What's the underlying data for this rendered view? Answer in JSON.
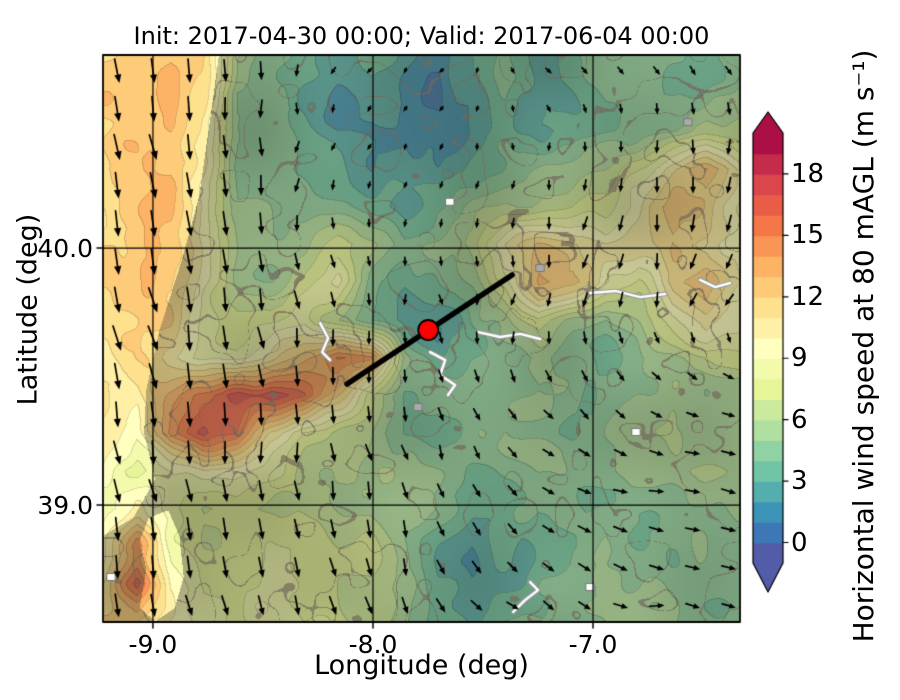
{
  "title": "Init: 2017-04-30 00:00; Valid: 2017-06-04 00:00",
  "chart_data": {
    "type": "heatmap",
    "overlay": "quiver",
    "title": "Init: 2017-04-30 00:00; Valid: 2017-06-04 00:00",
    "xlabel": "Longitude (deg)",
    "ylabel": "Latitude (deg)",
    "xlim": [
      -9.227,
      -6.332
    ],
    "ylim": [
      38.545,
      40.751
    ],
    "x_ticks": [
      {
        "value": -9.0,
        "label": "-9.0"
      },
      {
        "value": -8.0,
        "label": "-8.0"
      },
      {
        "value": -7.0,
        "label": "-7.0"
      }
    ],
    "y_ticks": [
      {
        "value": 40.0,
        "label": "40.0"
      },
      {
        "value": 39.0,
        "label": "39.0"
      }
    ],
    "grid_lines": true,
    "colorbar": {
      "label": "Horizontal wind speed at 80 mAGL (m s⁻¹)",
      "ticks": [
        {
          "value": 0,
          "label": "0"
        },
        {
          "value": 3,
          "label": "3"
        },
        {
          "value": 6,
          "label": "6"
        },
        {
          "value": 9,
          "label": "9"
        },
        {
          "value": 12,
          "label": "12"
        },
        {
          "value": 15,
          "label": "15"
        },
        {
          "value": 18,
          "label": "18"
        }
      ],
      "vmin": -1,
      "vmax": 20,
      "band_step": 1,
      "extend": "both",
      "palette_anchors": [
        "#5e4fa2",
        "#3288bd",
        "#66c2a5",
        "#abdda4",
        "#e6f598",
        "#ffffbf",
        "#fee08b",
        "#fdae61",
        "#f46d43",
        "#d53e4f",
        "#9e0142"
      ]
    },
    "grid": {
      "units": "m s-1",
      "lon_min": -9.227,
      "lon_max": -6.332,
      "lat_min": 38.545,
      "lat_max": 40.751,
      "nrows": 16,
      "ncols": 20,
      "speeds_m_s": [
        [
          13,
          13.5,
          14,
          12,
          6,
          5,
          3.5,
          2,
          3,
          2,
          1.5,
          3,
          4,
          3,
          4,
          4.5,
          4,
          3.5,
          4,
          4.5
        ],
        [
          13,
          13.5,
          14,
          11.5,
          5,
          4.5,
          3,
          2,
          2.5,
          1.5,
          1,
          2.5,
          4,
          3,
          3.5,
          4.5,
          4,
          3.5,
          4,
          4.5
        ],
        [
          12.5,
          13,
          13.5,
          11,
          5,
          4.5,
          3.5,
          2,
          1.5,
          2,
          1,
          2,
          3.5,
          3,
          3,
          4,
          4.5,
          5,
          6,
          5.5
        ],
        [
          12.5,
          13,
          13,
          10,
          5,
          4,
          3,
          2.5,
          2,
          3,
          2,
          3,
          4,
          4.5,
          5,
          6,
          8,
          11,
          13,
          10
        ],
        [
          12,
          12.5,
          13,
          10,
          5.5,
          5,
          4,
          3.5,
          3,
          2,
          3.5,
          5,
          6,
          6,
          7,
          8,
          10,
          13,
          12,
          9
        ],
        [
          12,
          12.5,
          12.5,
          9.5,
          6,
          5.5,
          5,
          7,
          6,
          4,
          5,
          6,
          10,
          12,
          11,
          10,
          11,
          12,
          11,
          9
        ],
        [
          11.5,
          12,
          12,
          9,
          6,
          6,
          7,
          9,
          5,
          3,
          4,
          5,
          8,
          13,
          12,
          9,
          8,
          12,
          13,
          10
        ],
        [
          11.5,
          11.5,
          11.5,
          8.5,
          6.5,
          7,
          9,
          7,
          5,
          3,
          2.5,
          4,
          6,
          8,
          6,
          5,
          6,
          9,
          11,
          9
        ],
        [
          11,
          11.5,
          10,
          8,
          8,
          10,
          13,
          16,
          15,
          6,
          3,
          3.5,
          4,
          5,
          4.5,
          4,
          5,
          6,
          7,
          7
        ],
        [
          11,
          10,
          13,
          15,
          17,
          18,
          16,
          12,
          8,
          4,
          3.5,
          3.5,
          4,
          4.5,
          4,
          4,
          5,
          5.5,
          5,
          5.5
        ],
        [
          10.5,
          9,
          14,
          17,
          15,
          10,
          8,
          7,
          6,
          4,
          3.5,
          4,
          4.5,
          4,
          3.5,
          4.5,
          5,
          5.5,
          5,
          5
        ],
        [
          10,
          8,
          9,
          10,
          9,
          8,
          7,
          6.5,
          6,
          5,
          4.5,
          4,
          4.5,
          5,
          4.5,
          5,
          5.5,
          5,
          5.5,
          5
        ],
        [
          9,
          11,
          8.5,
          7,
          7.5,
          7,
          6.5,
          6,
          5.5,
          5,
          4.5,
          4,
          4.5,
          4,
          4.5,
          5,
          4.5,
          5,
          4.5,
          5
        ],
        [
          10,
          15,
          9,
          7,
          7,
          7.5,
          7,
          6.5,
          7.5,
          6,
          4,
          3,
          4,
          3.5,
          4,
          5,
          4.5,
          5,
          5,
          4.5
        ],
        [
          12,
          16,
          9,
          7.5,
          7,
          8,
          7,
          7,
          7.5,
          6,
          4,
          2.5,
          3,
          4,
          4.5,
          5,
          5,
          4.5,
          5,
          5
        ],
        [
          13,
          12,
          9.5,
          8,
          7.5,
          8.5,
          8,
          7.5,
          7,
          6,
          4,
          3,
          3.5,
          4.5,
          5,
          5.5,
          5,
          5,
          5,
          5
        ]
      ]
    },
    "wind_vectors": {
      "units": "m s-1 (u eastward, v northward)",
      "nrows": 8,
      "ncols": 10,
      "uv": [
        [
          [
            2,
            -11
          ],
          [
            2,
            -11
          ],
          [
            1,
            -10
          ],
          [
            -2,
            -4
          ],
          [
            -2,
            -2
          ],
          [
            -1,
            -2
          ],
          [
            2,
            -3
          ],
          [
            3,
            -3
          ],
          [
            3,
            -4
          ],
          [
            3,
            -4
          ]
        ],
        [
          [
            2,
            -12
          ],
          [
            2,
            -12
          ],
          [
            1,
            -10
          ],
          [
            -1,
            -4
          ],
          [
            -2,
            -2
          ],
          [
            -1,
            -3
          ],
          [
            1,
            -3
          ],
          [
            2,
            -4
          ],
          [
            -1,
            -6
          ],
          [
            -2,
            -7
          ]
        ],
        [
          [
            2,
            -12
          ],
          [
            2,
            -12
          ],
          [
            1,
            -11
          ],
          [
            0,
            -6
          ],
          [
            -1,
            -3
          ],
          [
            0,
            -4
          ],
          [
            -1,
            -5
          ],
          [
            -1,
            -7
          ],
          [
            -2,
            -8
          ],
          [
            -2,
            -8
          ]
        ],
        [
          [
            2,
            -12
          ],
          [
            2,
            -12
          ],
          [
            1,
            -11
          ],
          [
            1,
            -8
          ],
          [
            0,
            -5
          ],
          [
            1,
            -5
          ],
          [
            -1,
            -6
          ],
          [
            -2,
            -7
          ],
          [
            -2,
            -7
          ],
          [
            -3,
            -6
          ]
        ],
        [
          [
            2,
            -12
          ],
          [
            3,
            -12
          ],
          [
            2,
            -11
          ],
          [
            1,
            -9
          ],
          [
            1,
            -6
          ],
          [
            2,
            -6
          ],
          [
            2,
            -6
          ],
          [
            3,
            -5
          ],
          [
            4,
            -4
          ],
          [
            5,
            -3
          ]
        ],
        [
          [
            2,
            -11
          ],
          [
            2,
            -11
          ],
          [
            1,
            -10
          ],
          [
            1,
            -9
          ],
          [
            2,
            -8
          ],
          [
            3,
            -6
          ],
          [
            4,
            -5
          ],
          [
            6,
            -3
          ],
          [
            7,
            -1
          ],
          [
            7,
            -1
          ]
        ],
        [
          [
            1,
            -11
          ],
          [
            1,
            -11
          ],
          [
            1,
            -10
          ],
          [
            2,
            -9
          ],
          [
            2,
            -8
          ],
          [
            3,
            -7
          ],
          [
            5,
            -4
          ],
          [
            7,
            -2
          ],
          [
            7,
            -1
          ],
          [
            7,
            -1
          ]
        ],
        [
          [
            1,
            -11
          ],
          [
            1,
            -10
          ],
          [
            2,
            -9
          ],
          [
            2,
            -9
          ],
          [
            3,
            -8
          ],
          [
            4,
            -6
          ],
          [
            5,
            -4
          ],
          [
            6,
            -3
          ],
          [
            7,
            -1
          ],
          [
            6,
            -2
          ]
        ]
      ]
    },
    "cross_section": {
      "line": [
        [
          -8.118,
          39.471
        ],
        [
          -7.368,
          39.895
        ]
      ],
      "point": [
        -7.749,
        39.681
      ]
    },
    "coastline_lat_lon": [
      [
        40.751,
        -8.7
      ],
      [
        40.5,
        -8.74
      ],
      [
        40.2,
        -8.79
      ],
      [
        39.95,
        -8.87
      ],
      [
        39.68,
        -8.97
      ],
      [
        39.45,
        -9.03
      ],
      [
        39.28,
        -9.04
      ],
      [
        39.1,
        -8.99
      ],
      [
        38.95,
        -9.09
      ],
      [
        38.88,
        -9.227
      ]
    ],
    "estuary_polygon": [
      [
        -9.02,
        38.95
      ],
      [
        -8.93,
        38.98
      ],
      [
        -8.88,
        38.88
      ],
      [
        -8.86,
        38.72
      ],
      [
        -8.9,
        38.6
      ],
      [
        -8.99,
        38.547
      ],
      [
        -9.06,
        38.6
      ],
      [
        -9.03,
        38.75
      ],
      [
        -9.06,
        38.86
      ]
    ],
    "rivers": [
      [
        [
          -7.013,
          39.825
        ],
        [
          -6.899,
          39.833
        ],
        [
          -6.786,
          39.809
        ],
        [
          -6.672,
          39.821
        ]
      ],
      [
        [
          -7.522,
          39.673
        ],
        [
          -7.422,
          39.654
        ],
        [
          -7.331,
          39.666
        ],
        [
          -7.24,
          39.646
        ]
      ],
      [
        [
          -7.74,
          39.595
        ],
        [
          -7.672,
          39.564
        ],
        [
          -7.695,
          39.506
        ],
        [
          -7.627,
          39.467
        ],
        [
          -7.659,
          39.428
        ]
      ],
      [
        [
          -8.24,
          39.708
        ],
        [
          -8.204,
          39.65
        ],
        [
          -8.231,
          39.595
        ],
        [
          -8.195,
          39.564
        ]
      ],
      [
        [
          -7.363,
          38.584
        ],
        [
          -7.309,
          38.63
        ],
        [
          -7.25,
          38.669
        ],
        [
          -7.286,
          38.7
        ]
      ],
      [
        [
          -6.513,
          39.876
        ],
        [
          -6.445,
          39.848
        ],
        [
          -6.377,
          39.864
        ]
      ]
    ],
    "small_markers": [
      {
        "lon": -7.24,
        "lat": 39.922,
        "type": "gray"
      },
      {
        "lon": -6.568,
        "lat": 40.49,
        "type": "gray"
      },
      {
        "lon": -7.795,
        "lat": 39.381,
        "type": "gray"
      },
      {
        "lon": -7.013,
        "lat": 38.681,
        "type": "white"
      },
      {
        "lon": -6.804,
        "lat": 39.284,
        "type": "white"
      },
      {
        "lon": -7.65,
        "lat": 40.18,
        "type": "white"
      },
      {
        "lon": -9.19,
        "lat": 38.72,
        "type": "white"
      }
    ],
    "style": {
      "arrow_color": "#000000",
      "grid_color": "#000000",
      "cross_section_color": "#000000",
      "marker_fill": "#ff0000",
      "marker_edge": "#000000",
      "river_color": "#ffffff",
      "river_casing": "#999999",
      "land_tint": "#55543f",
      "terrain_contour_color": "#73695a",
      "frame_color": "#000000",
      "background": "#ffffff"
    }
  }
}
